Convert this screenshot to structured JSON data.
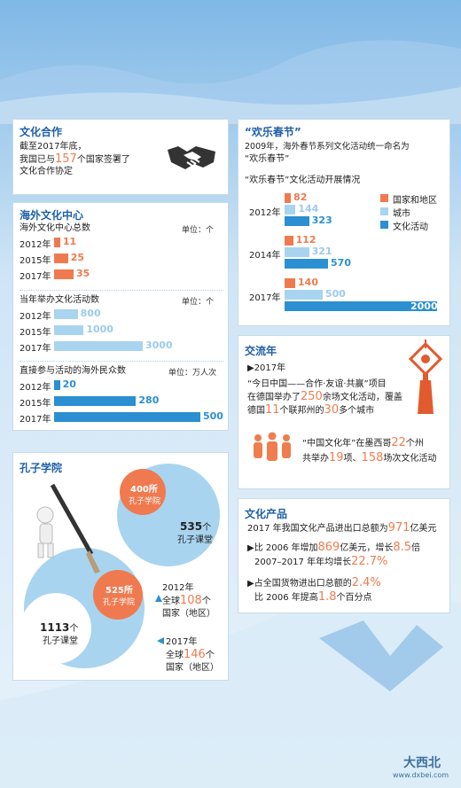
{
  "culture_coop": {
    "title": "文化合作",
    "line1": "截至2017年底，",
    "line2_pre": "我国已与",
    "line2_num": "157",
    "line2_post": "个国家签署了",
    "line3": "文化合作协定"
  },
  "centers": {
    "title": "海外文化中心",
    "sub1": "海外文化中心总数",
    "sub2": "当年举办文化活动数",
    "sub3": "直接参与活动的海外民众数",
    "unit1": "单位：个",
    "unit2": "单位：个",
    "unit3": "单位：万人次"
  },
  "spring": {
    "title": "“欢乐春节”",
    "desc1": "2009年，海外春节系列文化活动统一命名为",
    "desc2": "“欢乐春节”",
    "chart_title": "“欢乐春节”文化活动开展情况"
  },
  "exchange": {
    "title": "交流年",
    "year": "▶2017年",
    "l1": "“今日中国——合作·友谊·共赢”项目",
    "l2_pre": "在德国举办了",
    "l2_num": "250",
    "l2_post": "余场文化活动，覆盖",
    "l3_pre": "德国",
    "l3_num1": "11",
    "l3_mid": "个联邦州的",
    "l3_num2": "30",
    "l3_post": "多个城市",
    "l4_pre": "“中国文化年”在墨西哥",
    "l4_num": "22",
    "l4_post": "个州",
    "l5_pre": "共举办",
    "l5_num1": "19",
    "l5_mid": "项、",
    "l5_num2": "158",
    "l5_post": "场次文化活动"
  },
  "products": {
    "title": "文化产品",
    "l1_pre": "2017 年我国文化产品进出口总额为",
    "l1_num": "971",
    "l1_post": "亿美元",
    "l2_pre": "▶比 2006 年增加",
    "l2_num1": "869",
    "l2_mid": "亿美元，增长",
    "l2_num2": "8.5",
    "l2_post": "倍",
    "l3_pre": "2007–2017 年年均增长",
    "l3_num": "22.7%",
    "l4_pre": "▶占全国货物进出口总额的",
    "l4_num": "2.4%",
    "l5_pre": "比 2006 年提高",
    "l5_num": "1.8",
    "l5_post": "个百分点"
  },
  "confucius": {
    "title": "孔子学院",
    "a_num": "400所",
    "a_txt": "孔子学院",
    "b_num": "535",
    "b_unit": "个",
    "b_txt": "孔子课堂",
    "c_num": "525所",
    "c_txt": "孔子学院",
    "d_num": "1113",
    "d_unit": "个",
    "d_txt": "孔子课堂",
    "y1": "2012年",
    "y1_l2_pre": "全球",
    "y1_l2_num": "108",
    "y1_l2_post": "个",
    "y1_l3": "国家（地区）",
    "y2": "2017年",
    "y2_l2_pre": "全球",
    "y2_l2_num": "146",
    "y2_l2_post": "个",
    "y2_l3": "国家（地区）"
  },
  "watermark": {
    "site": "www.dxbei.com",
    "brand": "大西北"
  },
  "chart_data": [
    {
      "type": "bar",
      "categories": [
        "2012年",
        "2015年",
        "2017年"
      ],
      "series": [
        {
          "values": [
            11,
            25,
            35
          ]
        }
      ],
      "title": "海外文化中心总数",
      "ylabel": "单位：个",
      "color": "#f07a4f"
    },
    {
      "type": "bar",
      "categories": [
        "2012年",
        "2015年",
        "2017年"
      ],
      "series": [
        {
          "values": [
            800,
            1000,
            3000
          ]
        }
      ],
      "title": "当年举办文化活动数",
      "ylabel": "单位：个",
      "color": "#a8d4ef"
    },
    {
      "type": "bar",
      "categories": [
        "2012年",
        "2015年",
        "2017年"
      ],
      "series": [
        {
          "values": [
            20,
            280,
            500
          ]
        }
      ],
      "title": "直接参与活动的海外民众数",
      "ylabel": "单位：万人次",
      "color": "#2b8fd1"
    },
    {
      "type": "bar",
      "title": "“欢乐春节”文化活动开展情况",
      "categories": [
        "2012年",
        "2014年",
        "2017年"
      ],
      "series": [
        {
          "name": "国家和地区",
          "values": [
            82,
            112,
            140
          ],
          "color": "#f07a4f"
        },
        {
          "name": "城市",
          "values": [
            144,
            321,
            500
          ],
          "color": "#a8d4ef"
        },
        {
          "name": "文化活动",
          "values": [
            323,
            570,
            2000
          ],
          "color": "#2b8fd1"
        }
      ],
      "legend": "top-right"
    }
  ]
}
